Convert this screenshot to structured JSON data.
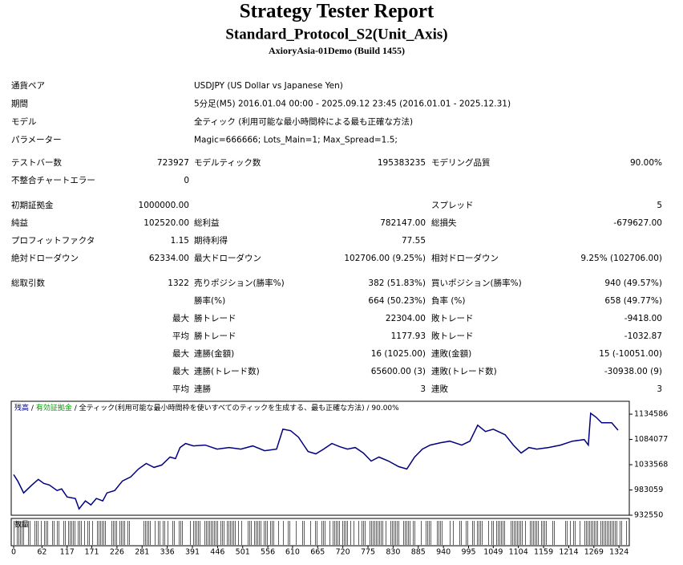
{
  "header": {
    "title": "Strategy Tester Report",
    "subtitle": "Standard_Protocol_S2(Unit_Axis)",
    "build": "AxioryAsia-01Demo (Build 1455)"
  },
  "settings": [
    [
      "通貨ペア",
      "USDJPY (US Dollar vs Japanese Yen)"
    ],
    [
      "期間",
      "5分足(M5) 2016.01.04 00:00 - 2025.09.12 23:45 (2016.01.01 - 2025.12.31)"
    ],
    [
      "モデル",
      "全ティック (利用可能な最小時間枠による最も正確な方法)"
    ],
    [
      "パラメーター",
      "Magic=666666; Lots_Main=1; Max_Spread=1.5;"
    ]
  ],
  "stats": [
    [
      [
        "テストバー数",
        "723927",
        "モデルティック数",
        "195383235",
        "モデリング品質",
        "90.00%"
      ],
      [
        "不整合チャートエラー",
        "0",
        null,
        null,
        null,
        null
      ]
    ],
    [
      [
        "初期証拠金",
        "1000000.00",
        null,
        null,
        "スプレッド",
        "5"
      ],
      [
        "純益",
        "102520.00",
        "総利益",
        "782147.00",
        "総損失",
        "-679627.00"
      ],
      [
        "プロフィットファクタ",
        "1.15",
        "期待利得",
        "77.55",
        null,
        null
      ],
      [
        "絶対ドローダウン",
        "62334.00",
        "最大ドローダウン",
        "102706.00 (9.25%)",
        "相対ドローダウン",
        "9.25% (102706.00)"
      ]
    ],
    [
      [
        "総取引数",
        "1322",
        "売りポジション(勝率%)",
        "382 (51.83%)",
        "買いポジション(勝率%)",
        "940 (49.57%)"
      ],
      [
        null,
        null,
        "勝率(%)",
        "664 (50.23%)",
        "負率 (%)",
        "658 (49.77%)"
      ],
      [
        null,
        "最大",
        "勝トレード",
        "22304.00",
        "敗トレード",
        "-9418.00"
      ],
      [
        null,
        "平均",
        "勝トレード",
        "1177.93",
        "敗トレード",
        "-1032.87"
      ],
      [
        null,
        "最大",
        "連勝(金額)",
        "16 (1025.00)",
        "連敗(金額)",
        "15 (-10051.00)"
      ],
      [
        null,
        "最大",
        "連勝(トレード数)",
        "65600.00 (3)",
        "連敗(トレード数)",
        "-30938.00 (9)"
      ],
      [
        null,
        "平均",
        "連勝",
        "3",
        "連敗",
        "3"
      ]
    ]
  ],
  "chart": {
    "type": "line",
    "legend": {
      "balance": "残高",
      "separator": "/",
      "equity": "有効証拠金",
      "model": "全ティック(利用可能な最小時間枠を使いすべてのティックを生成する、最も正確な方法)",
      "quality": "90.00%"
    },
    "volume_label": "数量",
    "color": "#000080",
    "volume_color": "#00a000",
    "x": [
      0,
      9,
      22,
      40,
      54,
      66,
      78,
      95,
      105,
      117,
      135,
      143,
      157,
      169,
      181,
      195,
      204,
      221,
      238,
      256,
      273,
      290,
      307,
      324,
      342,
      354,
      364,
      376,
      393,
      419,
      445,
      471,
      497,
      523,
      549,
      575,
      589,
      606,
      623,
      644,
      661,
      678,
      696,
      713,
      730,
      747,
      765,
      782,
      799,
      820,
      842,
      860,
      877,
      894,
      911,
      934,
      954,
      980,
      998,
      1015,
      1032,
      1049,
      1075,
      1093,
      1110,
      1127,
      1144,
      1170,
      1196,
      1222,
      1248,
      1257,
      1262,
      1274,
      1286,
      1308,
      1322
    ],
    "values": [
      1013800,
      1001050,
      977150,
      993080,
      1004235,
      996270,
      993080,
      981933,
      985119,
      969189,
      966003,
      945294,
      961224,
      953259,
      966003,
      961224,
      977150,
      981933,
      1001050,
      1009014,
      1024944,
      1036095,
      1028130,
      1032909,
      1048839,
      1045653,
      1067955,
      1075920,
      1071141,
      1072734,
      1064769,
      1067955,
      1064769,
      1071141,
      1061583,
      1064769,
      1104594,
      1101408,
      1088664,
      1059990,
      1055211,
      1064769,
      1075920,
      1069548,
      1064769,
      1067955,
      1056804,
      1040874,
      1048839,
      1040874,
      1029723,
      1024944,
      1048839,
      1064769,
      1072734,
      1077513,
      1080699,
      1072734,
      1080699,
      1112559,
      1099815,
      1104594,
      1093443,
      1072734,
      1056804,
      1067955,
      1064769,
      1067955,
      1072734,
      1080699,
      1083885,
      1072734,
      1136454,
      1128489,
      1117338,
      1117338,
      1102520
    ],
    "xlim": [
      0,
      1343
    ],
    "ylim": [
      932550,
      1160349
    ],
    "yticks": [
      1134586,
      1084077,
      1033568,
      983059,
      932550
    ],
    "xticks": [
      0,
      62,
      117,
      171,
      226,
      281,
      336,
      391,
      446,
      501,
      556,
      610,
      665,
      720,
      775,
      830,
      885,
      940,
      995,
      1049,
      1104,
      1159,
      1214,
      1269,
      1324
    ],
    "grid": false
  }
}
